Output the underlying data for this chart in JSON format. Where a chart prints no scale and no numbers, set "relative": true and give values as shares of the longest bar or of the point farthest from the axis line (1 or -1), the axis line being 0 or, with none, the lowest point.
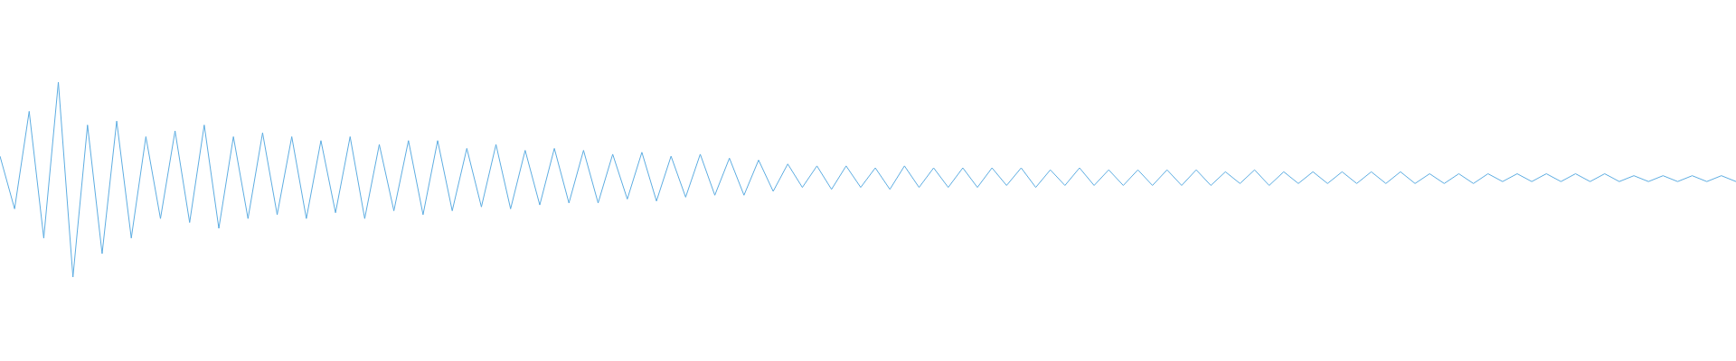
{
  "chart_data": {
    "type": "line",
    "relative": true,
    "categories": [
      null,
      null,
      null,
      null,
      null,
      null,
      null,
      null,
      null,
      null,
      null,
      null,
      null,
      null,
      null,
      null,
      null,
      null,
      null,
      null,
      null,
      null,
      null,
      null,
      null,
      null,
      null,
      null,
      null,
      null,
      null,
      null,
      null,
      null,
      null,
      null,
      null,
      null,
      null,
      null,
      null,
      null,
      null,
      null,
      null,
      null,
      null,
      null,
      null,
      null,
      null,
      null,
      null,
      null,
      null,
      null,
      null,
      null,
      null,
      null,
      null,
      null,
      null,
      null,
      null,
      null,
      null,
      null,
      null,
      null,
      null,
      null,
      null,
      null,
      null,
      null,
      null,
      null,
      null,
      null,
      null,
      null,
      null,
      null,
      null,
      null,
      null,
      null,
      null,
      null,
      null,
      null,
      null,
      null,
      null,
      null,
      null,
      null,
      null,
      null,
      null,
      null,
      null,
      null,
      null,
      null,
      null,
      null,
      null,
      null,
      null,
      null,
      null,
      null,
      null,
      null,
      null,
      null,
      null,
      null
    ],
    "series": [
      {
        "color": "#5dade2",
        "values": [
          0.62,
          0.35,
          0.85,
          0.2,
          1.0,
          0.0,
          0.78,
          0.12,
          0.8,
          0.2,
          0.72,
          0.3,
          0.75,
          0.28,
          0.78,
          0.25,
          0.72,
          0.3,
          0.74,
          0.32,
          0.72,
          0.3,
          0.7,
          0.33,
          0.72,
          0.3,
          0.68,
          0.34,
          0.7,
          0.32,
          0.7,
          0.34,
          0.66,
          0.36,
          0.68,
          0.35,
          0.65,
          0.37,
          0.66,
          0.38,
          0.65,
          0.38,
          0.63,
          0.4,
          0.64,
          0.39,
          0.62,
          0.41,
          0.63,
          0.42,
          0.61,
          0.42,
          0.6,
          0.44,
          0.58,
          0.46,
          0.57,
          0.45,
          0.57,
          0.46,
          0.56,
          0.45,
          0.57,
          0.46,
          0.56,
          0.46,
          0.56,
          0.46,
          0.56,
          0.47,
          0.56,
          0.46,
          0.55,
          0.47,
          0.56,
          0.47,
          0.55,
          0.47,
          0.55,
          0.47,
          0.55,
          0.47,
          0.55,
          0.47,
          0.54,
          0.48,
          0.55,
          0.47,
          0.54,
          0.48,
          0.54,
          0.48,
          0.54,
          0.48,
          0.54,
          0.48,
          0.54,
          0.48,
          0.53,
          0.48,
          0.53,
          0.48,
          0.53,
          0.49,
          0.53,
          0.49,
          0.53,
          0.49,
          0.53,
          0.49,
          0.53,
          0.49,
          0.52,
          0.49,
          0.52,
          0.49,
          0.52,
          0.49,
          0.52,
          0.49
        ]
      }
    ]
  }
}
